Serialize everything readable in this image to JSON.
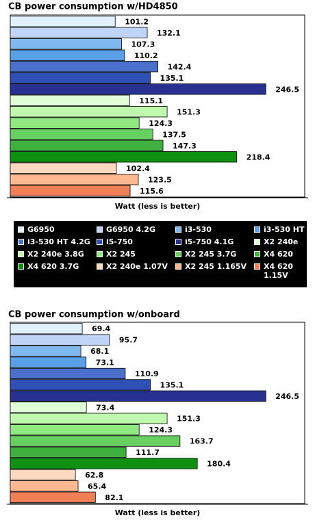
{
  "legend": {
    "items": [
      {
        "name": "G6950",
        "color": "#e0f0ff"
      },
      {
        "name": "G6950 4.2G",
        "color": "#c0d4f8"
      },
      {
        "name": "i3-530",
        "color": "#80b8f0"
      },
      {
        "name": "i3-530 HT",
        "color": "#5aa0e8"
      },
      {
        "name": "i3-530 HT 4.2G",
        "color": "#4a70cc"
      },
      {
        "name": "i5-750",
        "color": "#3050b8"
      },
      {
        "name": "i5-750 4.1G",
        "color": "#283090"
      },
      {
        "name": "X2 240e",
        "color": "#e0ffd8"
      },
      {
        "name": "X2 240e 3.8G",
        "color": "#c0f8b0"
      },
      {
        "name": "X2 245",
        "color": "#90e880"
      },
      {
        "name": "X2 245 3.7G",
        "color": "#68d060"
      },
      {
        "name": "X4 620",
        "color": "#40b040"
      },
      {
        "name": "X4 620 3.7G",
        "color": "#109010"
      },
      {
        "name": "X2 240e 1.07V",
        "color": "#ffd8c0"
      },
      {
        "name": "X2 245 1.165V",
        "color": "#ffb890"
      },
      {
        "name": "X4 620 1.15V",
        "color": "#f08058"
      }
    ]
  },
  "chart_data": [
    {
      "type": "bar",
      "orientation": "horizontal",
      "title": "CB power consumption w/HD4850",
      "xlabel": "Watt (less is better)",
      "values": [
        101.2,
        132.1,
        107.3,
        110.2,
        142.4,
        135.1,
        246.5,
        115.1,
        151.3,
        124.3,
        137.5,
        147.3,
        218.4,
        102.4,
        123.5,
        115.6
      ],
      "xlim": [
        0,
        284
      ]
    },
    {
      "type": "bar",
      "orientation": "horizontal",
      "title": "CB power consumption w/onboard",
      "xlabel": "Watt (less is better)",
      "values": [
        69.4,
        95.7,
        68.1,
        73.1,
        110.9,
        135.1,
        246.5,
        73.4,
        151.3,
        124.3,
        163.7,
        111.7,
        180.4,
        62.8,
        65.4,
        82.1
      ],
      "xlim": [
        0,
        284
      ]
    }
  ]
}
